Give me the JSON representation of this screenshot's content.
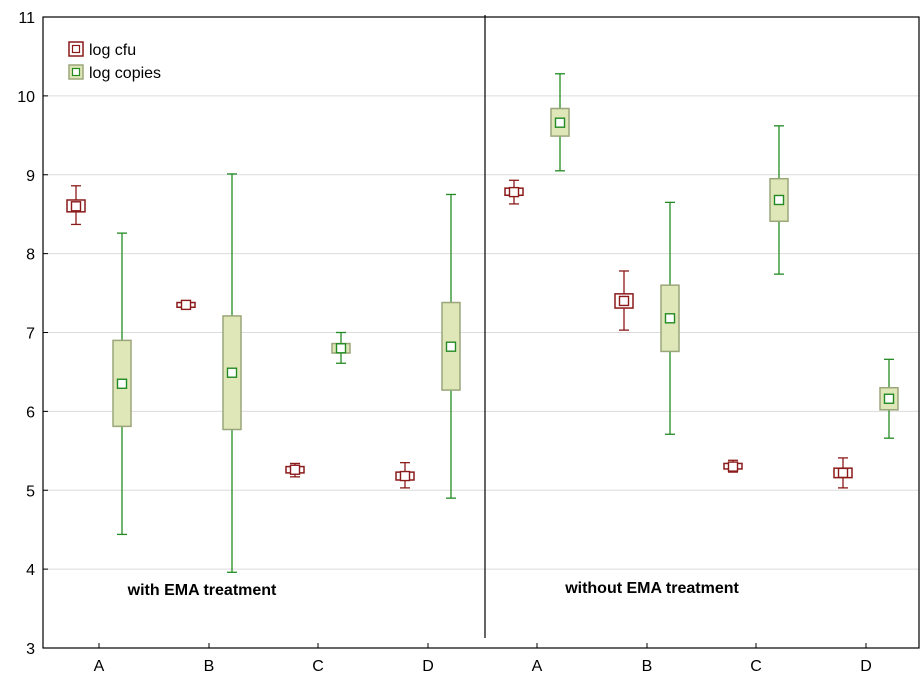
{
  "chart_data": {
    "type": "boxplot",
    "ylim": [
      3,
      11
    ],
    "yticks": [
      3,
      4,
      5,
      6,
      7,
      8,
      9,
      10,
      11
    ],
    "grid": true,
    "legend_placement": "top-left",
    "panels": [
      {
        "annotation": "with EMA treatment",
        "categories": [
          "A",
          "B",
          "C",
          "D"
        ]
      },
      {
        "annotation": "without EMA treatment",
        "categories": [
          "A",
          "B",
          "C",
          "D"
        ]
      }
    ],
    "series": [
      {
        "name": "log cfu",
        "color": "#8b1a1a",
        "fill": "#ffffff",
        "stats": [
          [
            {
              "mean": 8.6,
              "box_low": 8.53,
              "box_high": 8.68,
              "whisker_low": 8.37,
              "whisker_high": 8.86
            },
            {
              "mean": 7.35,
              "box_low": 7.32,
              "box_high": 7.38,
              "whisker_low": 7.31,
              "whisker_high": 7.4
            },
            {
              "mean": 5.26,
              "box_low": 5.22,
              "box_high": 5.3,
              "whisker_low": 5.17,
              "whisker_high": 5.34
            },
            {
              "mean": 5.18,
              "box_low": 5.13,
              "box_high": 5.23,
              "whisker_low": 5.03,
              "whisker_high": 5.35
            }
          ],
          [
            {
              "mean": 8.78,
              "box_low": 8.74,
              "box_high": 8.83,
              "whisker_low": 8.63,
              "whisker_high": 8.93
            },
            {
              "mean": 7.4,
              "box_low": 7.31,
              "box_high": 7.49,
              "whisker_low": 7.03,
              "whisker_high": 7.78
            },
            {
              "mean": 5.3,
              "box_low": 5.27,
              "box_high": 5.34,
              "whisker_low": 5.23,
              "whisker_high": 5.38
            },
            {
              "mean": 5.22,
              "box_low": 5.16,
              "box_high": 5.28,
              "whisker_low": 5.03,
              "whisker_high": 5.41
            }
          ]
        ]
      },
      {
        "name": "log copies",
        "color": "#228b22",
        "fill": "#dfe6b8",
        "stats": [
          [
            {
              "mean": 6.35,
              "box_low": 5.81,
              "box_high": 6.9,
              "whisker_low": 4.44,
              "whisker_high": 8.26
            },
            {
              "mean": 6.49,
              "box_low": 5.77,
              "box_high": 7.21,
              "whisker_low": 3.96,
              "whisker_high": 9.01
            },
            {
              "mean": 6.8,
              "box_low": 6.74,
              "box_high": 6.86,
              "whisker_low": 6.61,
              "whisker_high": 7.0
            },
            {
              "mean": 6.82,
              "box_low": 6.27,
              "box_high": 7.38,
              "whisker_low": 4.9,
              "whisker_high": 8.75
            }
          ],
          [
            {
              "mean": 9.66,
              "box_low": 9.49,
              "box_high": 9.84,
              "whisker_low": 9.05,
              "whisker_high": 10.28
            },
            {
              "mean": 7.18,
              "box_low": 6.76,
              "box_high": 7.6,
              "whisker_low": 5.71,
              "whisker_high": 8.65
            },
            {
              "mean": 8.68,
              "box_low": 8.41,
              "box_high": 8.95,
              "whisker_low": 7.74,
              "whisker_high": 9.62
            },
            {
              "mean": 6.16,
              "box_low": 6.02,
              "box_high": 6.3,
              "whisker_low": 5.66,
              "whisker_high": 6.66
            }
          ]
        ]
      }
    ]
  }
}
